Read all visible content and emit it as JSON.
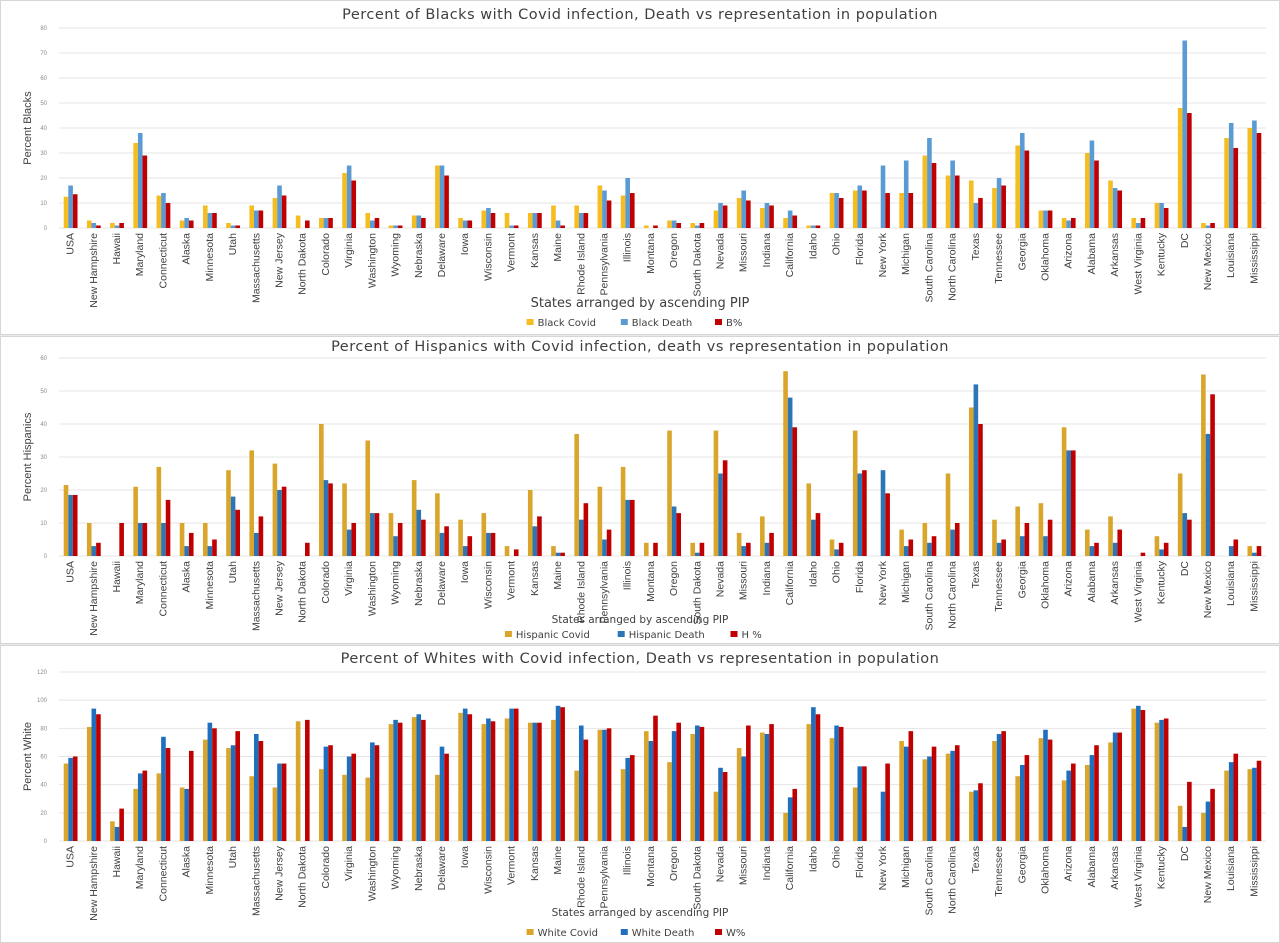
{
  "chart_data": [
    {
      "type": "bar",
      "title": "Percent of Blacks with Covid infection, Death vs representation in population",
      "xlabel": "States arranged by ascending PIP",
      "ylabel": "Percent Blacks",
      "ylim": [
        0,
        80
      ],
      "yticks": [
        0,
        10,
        20,
        30,
        40,
        50,
        60,
        70,
        80
      ],
      "grid": true,
      "legend_position": "bottom",
      "categories": [
        "USA",
        "New Hampshire",
        "Hawaii",
        "Maryland",
        "Connecticut",
        "Alaska",
        "Minnesota",
        "Utah",
        "Massachusetts",
        "New Jersey",
        "North Dakota",
        "Colorado",
        "Virginia",
        "Washington",
        "Wyoming",
        "Nebraska",
        "Delaware",
        "Iowa",
        "Wisconsin",
        "Vermont",
        "Kansas",
        "Maine",
        "Rhode Island",
        "Pennsylvania",
        "Illinois",
        "Montana",
        "Oregon",
        "South Dakota",
        "Nevada",
        "Missouri",
        "Indiana",
        "California",
        "Idaho",
        "Ohio",
        "Florida",
        "New York",
        "Michigan",
        "South Carolina",
        "North Carolina",
        "Texas",
        "Tennessee",
        "Georgia",
        "Oklahoma",
        "Arizona",
        "Alabama",
        "Arkansas",
        "West Virginia",
        "Kentucky",
        "DC",
        "New Mexico",
        "Louisiana",
        "Mississippi"
      ],
      "series": [
        {
          "name": "Black Covid",
          "color": "#f5bd1f",
          "values": [
            12.5,
            3,
            2,
            34,
            13,
            3,
            9,
            2,
            9,
            12,
            5,
            4,
            22,
            6,
            1,
            5,
            25,
            4,
            7,
            6,
            6,
            9,
            9,
            17,
            13,
            1,
            3,
            2,
            7,
            12,
            8,
            4,
            1,
            14,
            15,
            0,
            14,
            29,
            21,
            19,
            16,
            33,
            7,
            4,
            30,
            19,
            4,
            10,
            48,
            2,
            36,
            40
          ]
        },
        {
          "name": "Black Death",
          "color": "#5b9bd5",
          "values": [
            17,
            2,
            1,
            38,
            14,
            4,
            6,
            1,
            7,
            17,
            0,
            4,
            25,
            3,
            1,
            5,
            25,
            3,
            8,
            1,
            6,
            3,
            6,
            15,
            20,
            0,
            3,
            1,
            10,
            15,
            10,
            7,
            1,
            14,
            17,
            25,
            27,
            36,
            27,
            10,
            20,
            38,
            7,
            3,
            35,
            16,
            2,
            10,
            75,
            1,
            42,
            43
          ]
        },
        {
          "name": "B%",
          "color": "#c00000",
          "values": [
            13.5,
            1,
            2,
            29,
            10,
            3,
            6,
            1,
            7,
            13,
            3,
            4,
            19,
            4,
            1,
            4,
            21,
            3,
            6,
            1,
            6,
            1,
            6,
            11,
            14,
            1,
            2,
            2,
            9,
            11,
            9,
            5,
            1,
            12,
            15,
            14,
            14,
            26,
            21,
            12,
            17,
            31,
            7,
            4,
            27,
            15,
            4,
            8,
            46,
            2,
            32,
            38
          ]
        }
      ]
    },
    {
      "type": "bar",
      "title": "Percent of Hispanics with Covid infection, death vs representation in population",
      "xlabel": "States arranged by ascending PIP",
      "ylabel": "Percent Hispanics",
      "ylim": [
        0,
        60
      ],
      "yticks": [
        0,
        10,
        20,
        30,
        40,
        50,
        60
      ],
      "grid": true,
      "legend_position": "bottom",
      "categories": [
        "USA",
        "New Hampshire",
        "Hawaii",
        "Maryland",
        "Connecticut",
        "Alaska",
        "Minnesota",
        "Utah",
        "Massachusetts",
        "New Jersey",
        "North Dakota",
        "Colorado",
        "Virginia",
        "Washington",
        "Wyoming",
        "Nebraska",
        "Delaware",
        "Iowa",
        "Wisconsin",
        "Vermont",
        "Kansas",
        "Maine",
        "Rhode Island",
        "Pennsylvania",
        "Illinois",
        "Montana",
        "Oregon",
        "South Dakota",
        "Nevada",
        "Missouri",
        "Indiana",
        "California",
        "Idaho",
        "Ohio",
        "Florida",
        "New York",
        "Michigan",
        "South Carolina",
        "North Carolina",
        "Texas",
        "Tennessee",
        "Georgia",
        "Oklahoma",
        "Arizona",
        "Alabama",
        "Arkansas",
        "West Virginia",
        "Kentucky",
        "DC",
        "New Mexico",
        "Louisiana",
        "Mississippi"
      ],
      "series": [
        {
          "name": "Hispanic Covid",
          "color": "#d9a52b",
          "values": [
            21.5,
            10,
            0,
            21,
            27,
            10,
            10,
            26,
            32,
            28,
            0,
            40,
            22,
            35,
            13,
            23,
            19,
            11,
            13,
            3,
            20,
            3,
            37,
            21,
            27,
            4,
            38,
            4,
            38,
            7,
            12,
            56,
            22,
            5,
            38,
            0,
            8,
            10,
            25,
            45,
            11,
            15,
            16,
            39,
            8,
            12,
            0,
            6,
            25,
            55,
            0,
            3
          ]
        },
        {
          "name": "Hispanic Death",
          "color": "#2e75b6",
          "values": [
            18.5,
            3,
            0,
            10,
            10,
            3,
            3,
            18,
            7,
            20,
            0,
            23,
            8,
            13,
            6,
            14,
            7,
            3,
            7,
            0,
            9,
            1,
            11,
            5,
            17,
            0,
            15,
            1,
            25,
            3,
            4,
            48,
            11,
            2,
            25,
            26,
            3,
            4,
            8,
            52,
            4,
            6,
            6,
            32,
            3,
            4,
            0,
            2,
            13,
            37,
            3,
            1
          ]
        },
        {
          "name": "H %",
          "color": "#c00000",
          "values": [
            18.5,
            4,
            10,
            10,
            17,
            7,
            5,
            14,
            12,
            21,
            4,
            22,
            10,
            13,
            10,
            11,
            9,
            6,
            7,
            2,
            12,
            1,
            16,
            8,
            17,
            4,
            13,
            4,
            29,
            4,
            7,
            39,
            13,
            4,
            26,
            19,
            5,
            6,
            10,
            40,
            5,
            10,
            11,
            32,
            4,
            8,
            1,
            4,
            11,
            49,
            5,
            3
          ]
        }
      ]
    },
    {
      "type": "bar",
      "title": "Percent of Whites with Covid infection, Death vs representation in population",
      "xlabel": "States arranged by ascending PIP",
      "ylabel": "Percent White",
      "ylim": [
        0,
        120
      ],
      "yticks": [
        0,
        20,
        40,
        60,
        80,
        100,
        120
      ],
      "grid": true,
      "legend_position": "bottom",
      "categories": [
        "USA",
        "New Hampshire",
        "Hawaii",
        "Maryland",
        "Connecticut",
        "Alaska",
        "Minnesota",
        "Utah",
        "Massachusetts",
        "New Jersey",
        "North Dakota",
        "Colorado",
        "Virginia",
        "Washington",
        "Wyoming",
        "Nebraska",
        "Delaware",
        "Iowa",
        "Wisconsin",
        "Vermont",
        "Kansas",
        "Maine",
        "Rhode Island",
        "Pennsylvania",
        "Illinois",
        "Montana",
        "Oregon",
        "South Dakota",
        "Nevada",
        "Missouri",
        "Indiana",
        "California",
        "Idaho",
        "Ohio",
        "Florida",
        "New York",
        "Michigan",
        "South Carolina",
        "North Carolina",
        "Texas",
        "Tennessee",
        "Georgia",
        "Oklahoma",
        "Arizona",
        "Alabama",
        "Arkansas",
        "West Virginia",
        "Kentucky",
        "DC",
        "New Mexico",
        "Louisiana",
        "Mississippi"
      ],
      "series": [
        {
          "name": "White Covid",
          "color": "#d9a52b",
          "values": [
            55,
            81,
            14,
            37,
            48,
            38,
            72,
            66,
            46,
            38,
            85,
            51,
            47,
            45,
            83,
            88,
            47,
            91,
            83,
            87,
            84,
            86,
            50,
            79,
            51,
            78,
            56,
            76,
            35,
            66,
            77,
            20,
            83,
            73,
            38,
            0,
            71,
            58,
            62,
            35,
            71,
            46,
            73,
            43,
            54,
            70,
            94,
            84,
            25,
            20,
            50,
            51
          ]
        },
        {
          "name": "White Death",
          "color": "#1f6fbf",
          "values": [
            59,
            94,
            10,
            48,
            74,
            37,
            84,
            68,
            76,
            55,
            0,
            67,
            60,
            70,
            86,
            90,
            67,
            94,
            87,
            94,
            84,
            96,
            82,
            79,
            59,
            71,
            78,
            82,
            52,
            60,
            76,
            31,
            95,
            82,
            53,
            35,
            67,
            60,
            64,
            36,
            76,
            54,
            79,
            50,
            61,
            77,
            96,
            86,
            10,
            28,
            56,
            52
          ]
        },
        {
          "name": "W%",
          "color": "#c00000",
          "values": [
            60,
            90,
            23,
            50,
            66,
            64,
            80,
            78,
            71,
            55,
            86,
            68,
            62,
            68,
            84,
            86,
            62,
            90,
            85,
            94,
            84,
            95,
            72,
            80,
            61,
            89,
            84,
            81,
            49,
            82,
            83,
            37,
            90,
            81,
            53,
            55,
            78,
            67,
            68,
            41,
            78,
            61,
            72,
            55,
            68,
            77,
            93,
            87,
            42,
            37,
            62,
            57
          ]
        }
      ]
    }
  ]
}
